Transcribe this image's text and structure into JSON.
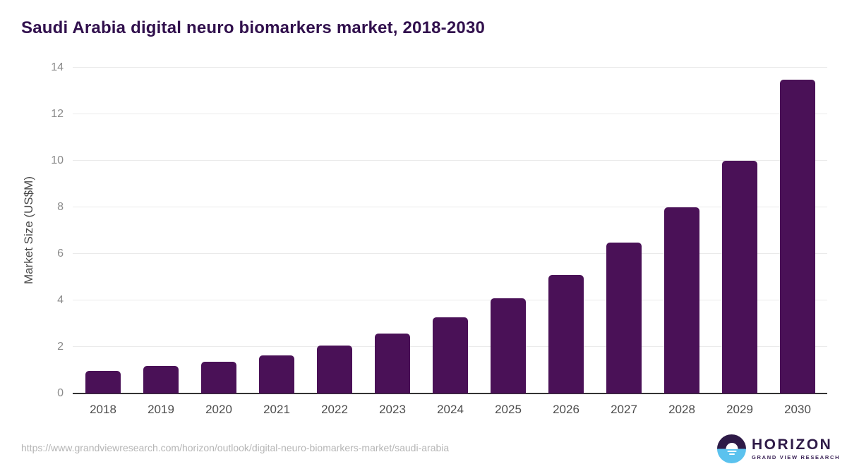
{
  "chart_data": {
    "type": "bar",
    "title": "Saudi Arabia digital neuro biomarkers market, 2018-2030",
    "categories": [
      "2018",
      "2019",
      "2020",
      "2021",
      "2022",
      "2023",
      "2024",
      "2025",
      "2026",
      "2027",
      "2028",
      "2029",
      "2030"
    ],
    "values": [
      0.97,
      1.18,
      1.36,
      1.65,
      2.05,
      2.57,
      3.26,
      4.1,
      5.1,
      6.48,
      8.0,
      10.0,
      13.49
    ],
    "xlabel": "",
    "ylabel": "Market Size (US$M)",
    "ylim": [
      0,
      14
    ],
    "yticks": [
      0,
      2,
      4,
      6,
      8,
      10,
      12,
      14
    ],
    "grid": true,
    "legend_position": "none",
    "bar_color": "#4a1157"
  },
  "footer": {
    "source_url": "https://www.grandviewresearch.com/horizon/outlook/digital-neuro-biomarkers-market/saudi-arabia",
    "logo": {
      "name": "HORIZON",
      "subtext": "GRAND VIEW RESEARCH",
      "icon": "horizon-sun-icon",
      "purple": "#2e1a47",
      "blue": "#5bc2ee"
    }
  },
  "colors": {
    "title": "#31104d",
    "grid": "#eaeaea",
    "axis": "#333333",
    "ytick_text": "#8b8b8b",
    "xtick_text": "#4d4d4d",
    "url_text": "#b5b5b5",
    "background": "#ffffff"
  }
}
